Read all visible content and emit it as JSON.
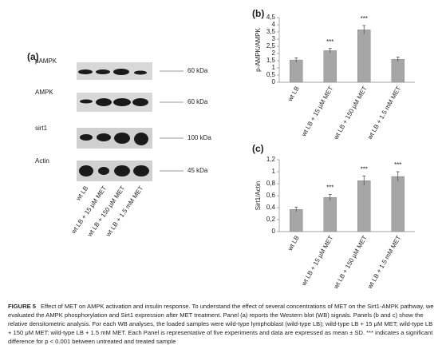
{
  "panels": {
    "a": "(a)",
    "b": "(b)",
    "c": "(c)"
  },
  "blot": {
    "rows": [
      "pAMPK",
      "AMPK",
      "sirt1",
      "Actin"
    ],
    "sizes": [
      "60 kDa",
      "60 kDa",
      "100 kDa",
      "45 kDa"
    ],
    "lanes": [
      "wt LB",
      "wt LB + 15 µM MET",
      "wt LB + 150 µM MET",
      "wt LB + 1.5 mM MET"
    ]
  },
  "chart_data": [
    {
      "type": "bar",
      "y_label": "p-AMPK/AMPK",
      "categories": [
        "wt LB",
        "wt LB + 15 µM MET",
        "wt LB + 150 µM MET",
        "wt LB + 1.5 mM MET"
      ],
      "values": [
        1.55,
        2.2,
        3.65,
        1.6
      ],
      "errors": [
        0.15,
        0.15,
        0.3,
        0.15
      ],
      "significance": [
        null,
        "***",
        "***",
        null
      ],
      "color": "#a6a6a6",
      "ylim": [
        0,
        4.5
      ],
      "yticks": [
        0,
        {
          "value": 0.5,
          "label": "0,5"
        },
        1,
        {
          "value": 1.5,
          "label": "1,5"
        },
        2,
        {
          "value": 2.5,
          "label": "2,5"
        },
        3,
        {
          "value": 3.5,
          "label": "3,5"
        },
        4,
        {
          "value": 4.5,
          "label": "4,5"
        }
      ]
    },
    {
      "type": "bar",
      "y_label": "Sirt1/Actin",
      "categories": [
        "wt LB",
        "wt LB + 15 µM MET",
        "wt LB + 150 µM MET",
        "wt LB + 1.5 mM MET"
      ],
      "values": [
        0.37,
        0.57,
        0.85,
        0.92
      ],
      "errors": [
        0.04,
        0.05,
        0.08,
        0.08
      ],
      "significance": [
        null,
        "***",
        "***",
        "***"
      ],
      "color": "#a6a6a6",
      "ylim": [
        0,
        1.2
      ],
      "yticks": [
        0,
        {
          "value": 0.2,
          "label": "0,2"
        },
        {
          "value": 0.4,
          "label": "0,4"
        },
        {
          "value": 0.6,
          "label": "0,6"
        },
        {
          "value": 0.8,
          "label": "0,8"
        },
        1,
        {
          "value": 1.2,
          "label": "1,2"
        }
      ]
    }
  ],
  "caption": {
    "label": "FIGURE 5",
    "text": "Effect of MET on AMPK activation and insulin response. To understand the effect of several concentrations of MET on the Sirt1-AMPK pathway, we evaluated the AMPK phosphorylation and Sirt1 expression after MET treatment. Panel (a) reports the Western blot (WB) signals. Panels (b and c) show the relative densitometric analysis. For each WB analyses, the loaded samples were wild-type lymphoblast (wild-type LB); wild-type LB + 15 μM MET; wild-type LB + 150 μM MET: wild-type LB + 1.5 mM MET. Each Panel is representative of five experiments and data are expressed as mean ± SD. *** indicates a significant difference for p < 0.001 between untreated and treated sample"
  }
}
